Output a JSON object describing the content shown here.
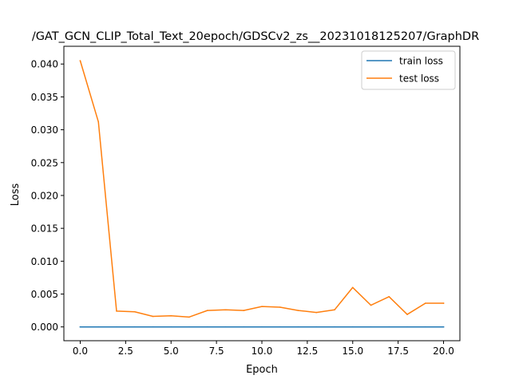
{
  "chart_data": {
    "type": "line",
    "title": "/GAT_GCN_CLIP_Total_Text_20epoch/GDSCv2_zs__20231018125207/GraphDR",
    "xlabel": "Epoch",
    "ylabel": "Loss",
    "xlim": [
      -0.9,
      20.9
    ],
    "ylim": [
      -0.0021,
      0.0427
    ],
    "xticks": [
      0,
      2.5,
      5,
      7.5,
      10,
      12.5,
      15,
      17.5,
      20
    ],
    "xtick_labels": [
      "0.0",
      "2.5",
      "5.0",
      "7.5",
      "10.0",
      "12.5",
      "15.0",
      "17.5",
      "20.0"
    ],
    "yticks": [
      0,
      0.005,
      0.01,
      0.015,
      0.02,
      0.025,
      0.03,
      0.035,
      0.04
    ],
    "ytick_labels": [
      "0.000",
      "0.005",
      "0.010",
      "0.015",
      "0.020",
      "0.025",
      "0.030",
      "0.035",
      "0.040"
    ],
    "legend_position": "upper right",
    "grid": false,
    "x": [
      0,
      1,
      2,
      3,
      4,
      5,
      6,
      7,
      8,
      9,
      10,
      11,
      12,
      13,
      14,
      15,
      16,
      17,
      18,
      19,
      20
    ],
    "series": [
      {
        "name": "train loss",
        "color": "#1f77b4",
        "values": [
          0,
          0,
          0,
          0,
          0,
          0,
          0,
          0,
          0,
          0,
          0,
          0,
          0,
          0,
          0,
          0,
          0,
          0,
          0,
          0,
          0
        ]
      },
      {
        "name": "test loss",
        "color": "#ff7f0e",
        "values": [
          0.0405,
          0.0312,
          0.0024,
          0.0023,
          0.0016,
          0.0017,
          0.0015,
          0.0025,
          0.0026,
          0.0025,
          0.0031,
          0.003,
          0.0025,
          0.0022,
          0.0026,
          0.006,
          0.0033,
          0.0046,
          0.0019,
          0.0036,
          0.0036
        ]
      }
    ]
  }
}
